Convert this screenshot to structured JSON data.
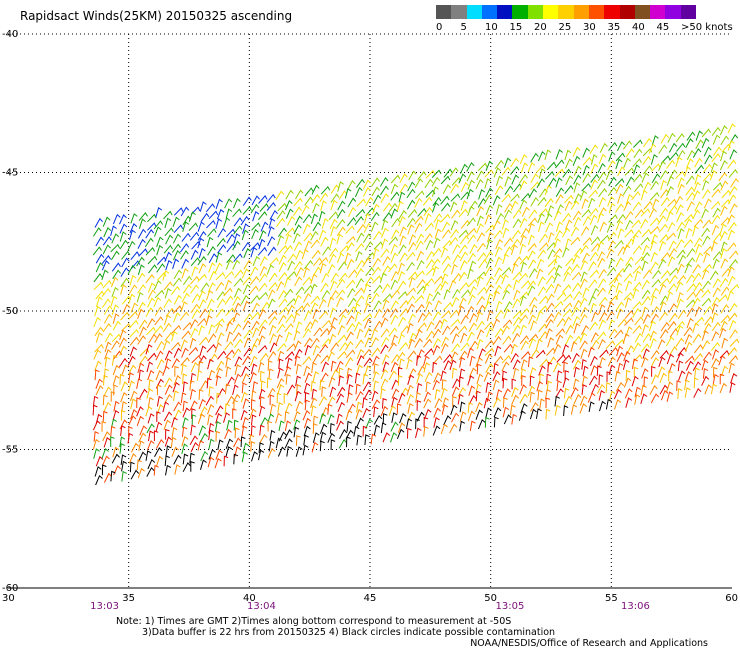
{
  "title": "Rapidsact Winds(25KM) 20150325 ascending",
  "color_scale": {
    "labels": [
      "0",
      "5",
      "10",
      "15",
      "20",
      "25",
      "30",
      "35",
      "40",
      "45",
      ">50 knots"
    ],
    "colors": [
      "#555555",
      "#808080",
      "#00ddff",
      "#0070ff",
      "#0010c0",
      "#00b000",
      "#80e000",
      "#ffff00",
      "#ffd000",
      "#ffa000",
      "#ff5000",
      "#ee0000",
      "#b00000",
      "#805020",
      "#d000d0",
      "#9000e0",
      "#6000a0"
    ]
  },
  "axes": {
    "x_ticks": [
      "30",
      "35",
      "40",
      "45",
      "50",
      "55",
      "60"
    ],
    "x_tick_values": [
      30,
      35,
      40,
      45,
      50,
      55,
      60
    ],
    "y_ticks": [
      "-40",
      "-45",
      "-50",
      "-55",
      "-60"
    ],
    "y_tick_values": [
      -40,
      -45,
      -50,
      -55,
      -60
    ],
    "xlim": [
      30,
      60
    ],
    "ylim": [
      -60,
      -40
    ],
    "grid": "dotted"
  },
  "times": [
    {
      "label": "13:03",
      "lon": 34.0
    },
    {
      "label": "13:04",
      "lon": 40.5
    },
    {
      "label": "13:05",
      "lon": 50.8
    },
    {
      "label": "13:06",
      "lon": 56.0
    }
  ],
  "notes": {
    "line1": "Note: 1) Times are GMT 2)Times along bottom correspond to measurement at -50S",
    "line2": "3)Data buffer is 22 hrs from 20150325 4) Black circles indicate possible contamination"
  },
  "credit": "NOAA/NESDIS/Office of Research and Applications"
}
